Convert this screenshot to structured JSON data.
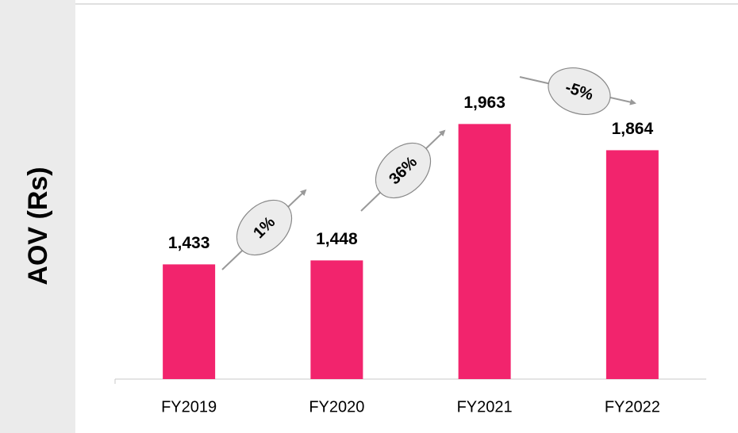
{
  "chart_data": {
    "type": "bar",
    "y_label": "AOV (Rs)",
    "categories": [
      "FY2019",
      "FY2020",
      "FY2021",
      "FY2022"
    ],
    "values": [
      1433,
      1448,
      1963,
      1864
    ],
    "value_labels": [
      "1,433",
      "1,448",
      "1,963",
      "1,864"
    ],
    "color": "#f2246d",
    "ylim": [
      1000,
      2000
    ],
    "annotations": [
      "1%",
      "36%",
      "-5%"
    ]
  }
}
